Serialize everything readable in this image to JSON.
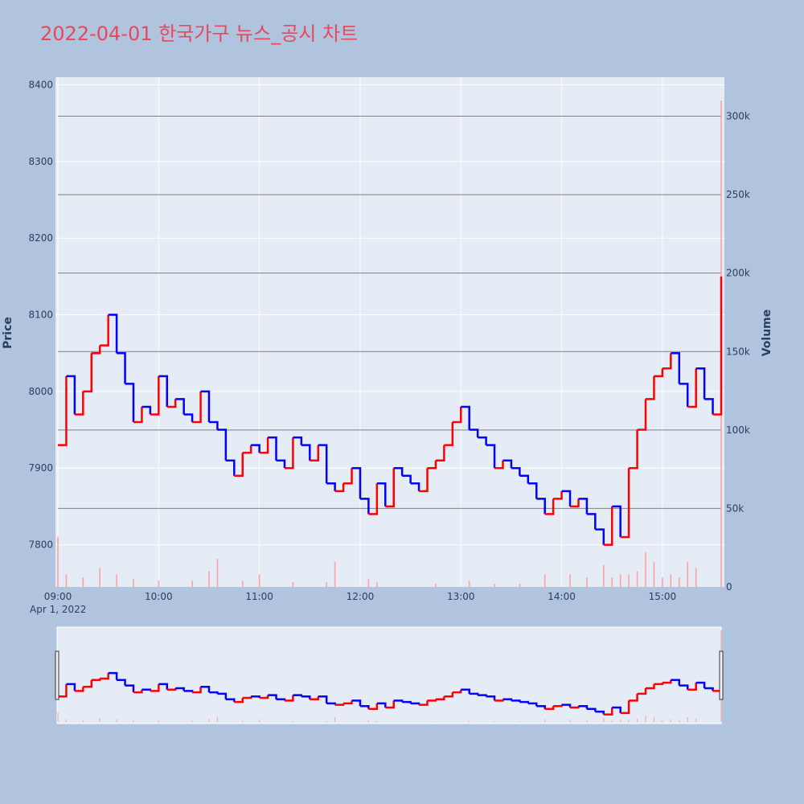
{
  "title": "2022-04-01 한국가구 뉴스_공시 차트",
  "chart_data": {
    "type": "candlestick",
    "date_label": "Apr 1, 2022",
    "x_ticks": [
      "09:00",
      "10:00",
      "11:00",
      "12:00",
      "13:00",
      "14:00",
      "15:00"
    ],
    "y_left_label": "Price",
    "y_left_ticks": [
      7800,
      7900,
      8000,
      8100,
      8200,
      8300,
      8400
    ],
    "y_left_range": [
      7745,
      8410
    ],
    "y_right_label": "Volume",
    "y_right_ticks": [
      "0",
      "50k",
      "100k",
      "150k",
      "200k",
      "250k",
      "300k"
    ],
    "y_right_tick_values": [
      0,
      50000,
      100000,
      150000,
      200000,
      250000,
      300000
    ],
    "y_right_range": [
      0,
      310000
    ],
    "colors": {
      "up": "#ff0000",
      "down": "#0000ff",
      "grid": "#ffffff",
      "volume_grid": "#808080",
      "plot_bg": "#e5ecf6"
    },
    "price_path": [
      [
        "09:00",
        7930
      ],
      [
        "09:05",
        8020
      ],
      [
        "09:10",
        7970
      ],
      [
        "09:15",
        8000
      ],
      [
        "09:20",
        8050
      ],
      [
        "09:25",
        8060
      ],
      [
        "09:30",
        8100
      ],
      [
        "09:35",
        8050
      ],
      [
        "09:40",
        8010
      ],
      [
        "09:45",
        7960
      ],
      [
        "09:50",
        7980
      ],
      [
        "09:55",
        7970
      ],
      [
        "10:00",
        8020
      ],
      [
        "10:05",
        7980
      ],
      [
        "10:10",
        7990
      ],
      [
        "10:15",
        7970
      ],
      [
        "10:20",
        7960
      ],
      [
        "10:25",
        8000
      ],
      [
        "10:30",
        7960
      ],
      [
        "10:35",
        7950
      ],
      [
        "10:40",
        7910
      ],
      [
        "10:45",
        7890
      ],
      [
        "10:50",
        7920
      ],
      [
        "10:55",
        7930
      ],
      [
        "11:00",
        7920
      ],
      [
        "11:05",
        7940
      ],
      [
        "11:10",
        7910
      ],
      [
        "11:15",
        7900
      ],
      [
        "11:20",
        7940
      ],
      [
        "11:25",
        7930
      ],
      [
        "11:30",
        7910
      ],
      [
        "11:35",
        7930
      ],
      [
        "11:40",
        7880
      ],
      [
        "11:45",
        7870
      ],
      [
        "11:50",
        7880
      ],
      [
        "11:55",
        7900
      ],
      [
        "12:00",
        7860
      ],
      [
        "12:05",
        7840
      ],
      [
        "12:10",
        7880
      ],
      [
        "12:15",
        7850
      ],
      [
        "12:20",
        7900
      ],
      [
        "12:25",
        7890
      ],
      [
        "12:30",
        7880
      ],
      [
        "12:35",
        7870
      ],
      [
        "12:40",
        7900
      ],
      [
        "12:45",
        7910
      ],
      [
        "12:50",
        7930
      ],
      [
        "12:55",
        7960
      ],
      [
        "13:00",
        7980
      ],
      [
        "13:05",
        7950
      ],
      [
        "13:10",
        7940
      ],
      [
        "13:15",
        7930
      ],
      [
        "13:20",
        7900
      ],
      [
        "13:25",
        7910
      ],
      [
        "13:30",
        7900
      ],
      [
        "13:35",
        7890
      ],
      [
        "13:40",
        7880
      ],
      [
        "13:45",
        7860
      ],
      [
        "13:50",
        7840
      ],
      [
        "13:55",
        7860
      ],
      [
        "14:00",
        7870
      ],
      [
        "14:05",
        7850
      ],
      [
        "14:10",
        7860
      ],
      [
        "14:15",
        7840
      ],
      [
        "14:20",
        7820
      ],
      [
        "14:25",
        7800
      ],
      [
        "14:30",
        7850
      ],
      [
        "14:35",
        7810
      ],
      [
        "14:40",
        7900
      ],
      [
        "14:45",
        7950
      ],
      [
        "14:50",
        7990
      ],
      [
        "14:55",
        8020
      ],
      [
        "15:00",
        8030
      ],
      [
        "15:05",
        8050
      ],
      [
        "15:10",
        8010
      ],
      [
        "15:15",
        7980
      ],
      [
        "15:20",
        8030
      ],
      [
        "15:25",
        7990
      ],
      [
        "15:30",
        7970
      ],
      [
        "15:35",
        8150
      ]
    ],
    "volume_points": [
      [
        "09:00",
        32000
      ],
      [
        "09:05",
        8000
      ],
      [
        "09:15",
        6000
      ],
      [
        "09:25",
        12000
      ],
      [
        "09:35",
        8000
      ],
      [
        "09:45",
        5000
      ],
      [
        "10:00",
        4000
      ],
      [
        "10:20",
        4000
      ],
      [
        "10:30",
        10000
      ],
      [
        "10:35",
        18000
      ],
      [
        "10:50",
        4000
      ],
      [
        "11:00",
        8000
      ],
      [
        "11:20",
        3000
      ],
      [
        "11:40",
        3000
      ],
      [
        "11:45",
        16000
      ],
      [
        "12:05",
        5000
      ],
      [
        "12:10",
        3000
      ],
      [
        "12:45",
        2000
      ],
      [
        "13:05",
        4000
      ],
      [
        "13:20",
        2000
      ],
      [
        "13:35",
        2000
      ],
      [
        "13:50",
        8000
      ],
      [
        "14:05",
        8000
      ],
      [
        "14:15",
        6000
      ],
      [
        "14:25",
        14000
      ],
      [
        "14:30",
        6000
      ],
      [
        "14:35",
        8000
      ],
      [
        "14:40",
        8000
      ],
      [
        "14:45",
        10000
      ],
      [
        "14:50",
        22000
      ],
      [
        "14:55",
        16000
      ],
      [
        "15:00",
        6000
      ],
      [
        "15:05",
        8000
      ],
      [
        "15:10",
        6000
      ],
      [
        "15:15",
        16000
      ],
      [
        "15:20",
        12000
      ],
      [
        "15:35",
        310000
      ]
    ]
  }
}
